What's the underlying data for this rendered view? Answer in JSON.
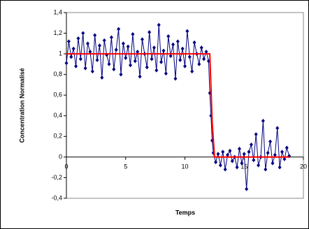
{
  "chart_data": {
    "type": "line",
    "x_label": "Temps",
    "y_label": "Concentration Normalisé",
    "xlim": [
      0,
      20
    ],
    "xticks": [
      0,
      5,
      10,
      15,
      20
    ],
    "ylim": [
      -0.4,
      1.4
    ],
    "yticks": [
      {
        "value": -0.4,
        "label": "-0,4"
      },
      {
        "value": -0.2,
        "label": "-0,2"
      },
      0,
      {
        "value": 0.2,
        "label": "0,2"
      },
      {
        "value": 0.4,
        "label": "0,4"
      },
      {
        "value": 0.6,
        "label": "0,6"
      },
      {
        "value": 0.8,
        "label": "0,8"
      },
      1,
      {
        "value": 1.2,
        "label": "1,2"
      },
      {
        "value": 1.4,
        "label": "1,4"
      }
    ],
    "series": [
      {
        "color": "#000080",
        "marker": "diamond",
        "x": [
          0,
          0.2,
          0.4,
          0.6,
          0.8,
          1,
          1.2,
          1.4,
          1.6,
          1.8,
          2,
          2.2,
          2.4,
          2.6,
          2.8,
          3,
          3.2,
          3.4,
          3.6,
          3.8,
          4,
          4.2,
          4.4,
          4.6,
          4.8,
          5,
          5.2,
          5.4,
          5.6,
          5.8,
          6,
          6.2,
          6.4,
          6.6,
          6.8,
          7,
          7.2,
          7.4,
          7.6,
          7.8,
          8,
          8.2,
          8.4,
          8.6,
          8.8,
          9,
          9.2,
          9.4,
          9.6,
          9.8,
          10,
          10.2,
          10.4,
          10.6,
          10.8,
          11,
          11.2,
          11.4,
          11.6,
          11.8,
          12,
          12.1,
          12.2,
          12.3,
          12.4,
          12.6,
          12.8,
          13,
          13.2,
          13.4,
          13.6,
          13.8,
          14,
          14.2,
          14.4,
          14.6,
          14.8,
          15,
          15.2,
          15.4,
          15.6,
          15.8,
          16,
          16.2,
          16.4,
          16.6,
          16.8,
          17,
          17.2,
          17.4,
          17.6,
          17.8,
          18,
          18.2,
          18.4,
          18.6,
          18.8
        ],
        "values": [
          0.91,
          1.12,
          0.97,
          1.05,
          0.88,
          1.15,
          0.95,
          1.2,
          0.86,
          1.1,
          1.02,
          0.83,
          1.18,
          0.94,
          1.08,
          0.77,
          1.13,
          0.99,
          0.9,
          1.16,
          0.85,
          1.04,
          1.24,
          0.8,
          1.1,
          0.96,
          1.07,
          0.89,
          1.19,
          0.93,
          1.02,
          0.78,
          1.14,
          1.0,
          0.87,
          1.21,
          0.95,
          1.06,
          0.84,
          1.28,
          0.92,
          1.03,
          0.81,
          1.17,
          0.98,
          1.09,
          0.76,
          1.12,
          0.94,
          1.05,
          0.88,
          1.22,
          0.97,
          0.83,
          1.11,
          1.0,
          0.9,
          1.06,
          0.95,
          1.02,
          0.93,
          0.62,
          0.4,
          0.16,
          0.04,
          -0.05,
          0.03,
          -0.08,
          0.05,
          -0.12,
          0.02,
          0.06,
          -0.04,
          0.0,
          -0.1,
          0.08,
          -0.06,
          0.03,
          -0.31,
          0.05,
          0.12,
          -0.03,
          0.22,
          -0.08,
          0.0,
          0.35,
          -0.12,
          0.04,
          0.15,
          -0.06,
          0.02,
          0.28,
          -0.1,
          0.05,
          -0.02,
          0.09,
          0.01
        ]
      },
      {
        "color": "#ff0000",
        "x": [
          0,
          12.1,
          12.2,
          12.3,
          12.4,
          12.5,
          18.8
        ],
        "values": [
          1,
          1,
          0.68,
          0.34,
          0.17,
          0,
          0
        ]
      }
    ]
  }
}
